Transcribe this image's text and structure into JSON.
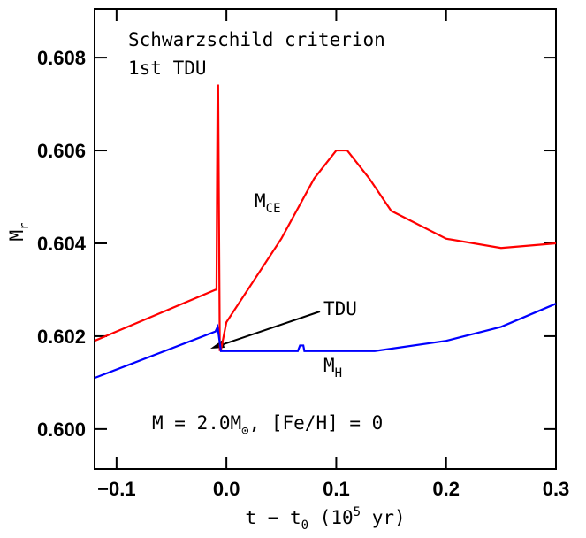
{
  "chart_data": {
    "type": "line",
    "y_label": [
      {
        "text": "M"
      },
      {
        "text": "r",
        "shift": "sub"
      }
    ],
    "x_label": [
      {
        "text": "t − t"
      },
      {
        "text": "0",
        "shift": "sub"
      },
      {
        "text": " (10"
      },
      {
        "text": "5",
        "shift": "sup"
      },
      {
        "text": " yr)"
      }
    ],
    "annotations": {
      "criterion": [
        {
          "text": "Schwarzschild criterion"
        }
      ],
      "event": [
        {
          "text": "1st TDU"
        }
      ],
      "ce": [
        {
          "text": "M"
        },
        {
          "text": "CE",
          "shift": "sub"
        }
      ],
      "tdu": [
        {
          "text": "TDU"
        }
      ],
      "h": [
        {
          "text": "M"
        },
        {
          "text": "H",
          "shift": "sub"
        }
      ],
      "model": [
        {
          "text": "M = 2.0M"
        },
        {
          "text": "⊙",
          "shift": "sub"
        },
        {
          "text": ", [Fe/H] = 0"
        }
      ]
    },
    "xlim": [
      -0.12,
      0.3
    ],
    "ylim": [
      0.59914,
      0.60905
    ],
    "xticks": [
      {
        "value": -0.1,
        "label": "−0.1"
      },
      {
        "value": 0,
        "label": "0.0"
      },
      0.1,
      0.2,
      0.3
    ],
    "yticks": [
      {
        "value": 0.6,
        "label": "0.600"
      },
      0.602,
      0.604,
      0.606,
      0.608
    ],
    "series": [
      {
        "color": "#ff0000",
        "x": [
          -0.12,
          -0.01,
          -0.009,
          -0.0085,
          -0.008,
          -0.0075,
          -0.006,
          -0.005,
          0.0,
          0.05,
          0.08,
          0.1,
          0.11,
          0.13,
          0.15,
          0.2,
          0.25,
          0.3
        ],
        "values": [
          0.6019,
          0.603,
          0.603,
          0.6054,
          0.6074,
          0.6074,
          0.6017,
          0.6017,
          0.6023,
          0.6041,
          0.6054,
          0.606,
          0.606,
          0.6054,
          0.6047,
          0.6041,
          0.6039,
          0.604
        ]
      },
      {
        "color": "#0000ff",
        "x": [
          -0.12,
          -0.01,
          -0.008,
          -0.005,
          0.065,
          0.067,
          0.07,
          0.071,
          0.135,
          0.2,
          0.25,
          0.3
        ],
        "values": [
          0.6011,
          0.6021,
          0.6022,
          0.60168,
          0.60168,
          0.6018,
          0.6018,
          0.60168,
          0.60168,
          0.6019,
          0.6022,
          0.6027
        ]
      }
    ]
  }
}
